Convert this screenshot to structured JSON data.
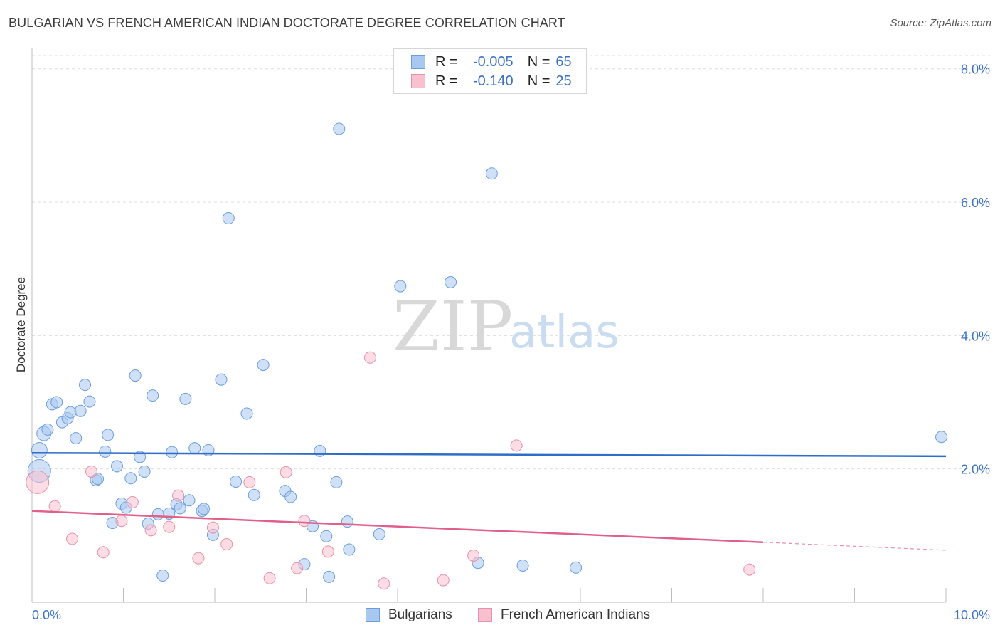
{
  "title": "BULGARIAN VS FRENCH AMERICAN INDIAN DOCTORATE DEGREE CORRELATION CHART",
  "source": "Source: ZipAtlas.com",
  "watermark": {
    "zip": "ZIP",
    "atlas": "atlas"
  },
  "legend_top": [
    {
      "r_label": "R =",
      "r_value": "-0.005",
      "n_label": "N =",
      "n_value": "65",
      "color": "#a9c8f0",
      "border": "#6a9ee0"
    },
    {
      "r_label": "R =",
      "r_value": "-0.140",
      "n_label": "N =",
      "n_value": "25",
      "color": "#f9c0d0",
      "border": "#e890ab"
    }
  ],
  "legend_bottom": [
    {
      "label": "Bulgarians",
      "color": "#a9c8f0",
      "border": "#6a9ee0"
    },
    {
      "label": "French American Indians",
      "color": "#f9c0d0",
      "border": "#e890ab"
    }
  ],
  "chart_data": {
    "type": "scatter",
    "title": "BULGARIAN VS FRENCH AMERICAN INDIAN DOCTORATE DEGREE CORRELATION CHART",
    "xlabel": "",
    "ylabel": "Doctorate Degree",
    "xlim": [
      0,
      10
    ],
    "ylim": [
      0,
      8.2
    ],
    "x_tick_labels": [
      {
        "value": 0,
        "label": "0.0%"
      },
      {
        "value": 10,
        "label": "10.0%"
      }
    ],
    "y_tick_labels": [
      {
        "value": 2,
        "label": "2.0%"
      },
      {
        "value": 4,
        "label": "4.0%"
      },
      {
        "value": 6,
        "label": "6.0%"
      },
      {
        "value": 8,
        "label": "8.0%"
      }
    ],
    "grid": true,
    "series": [
      {
        "name": "Bulgarians",
        "color": "#a9c8f0",
        "edge": "#6a9ee0",
        "trend": {
          "x": [
            0,
            10
          ],
          "y": [
            2.24,
            2.19
          ],
          "color": "#2f6ec8"
        },
        "points": [
          [
            0.08,
            2.28,
            11
          ],
          [
            0.08,
            1.97,
            16
          ],
          [
            0.13,
            2.53,
            10
          ],
          [
            0.17,
            2.59,
            8
          ],
          [
            0.22,
            2.97,
            8
          ],
          [
            0.27,
            3.0,
            8
          ],
          [
            0.33,
            2.7,
            8
          ],
          [
            0.39,
            2.76,
            8
          ],
          [
            0.42,
            2.85,
            8
          ],
          [
            0.48,
            2.46,
            8
          ],
          [
            0.53,
            2.87,
            8
          ],
          [
            0.58,
            3.26,
            8
          ],
          [
            0.63,
            3.01,
            8
          ],
          [
            0.7,
            1.83,
            8
          ],
          [
            0.72,
            1.85,
            8
          ],
          [
            0.8,
            2.26,
            8
          ],
          [
            0.83,
            2.51,
            8
          ],
          [
            0.88,
            1.19,
            8
          ],
          [
            0.93,
            2.04,
            8
          ],
          [
            0.98,
            1.48,
            8
          ],
          [
            1.03,
            1.42,
            8
          ],
          [
            1.08,
            1.86,
            8
          ],
          [
            1.13,
            3.4,
            8
          ],
          [
            1.18,
            2.18,
            8
          ],
          [
            1.23,
            1.96,
            8
          ],
          [
            1.27,
            1.18,
            8
          ],
          [
            1.32,
            3.1,
            8
          ],
          [
            1.38,
            1.32,
            8
          ],
          [
            1.43,
            0.4,
            8
          ],
          [
            1.5,
            1.33,
            8
          ],
          [
            1.53,
            2.25,
            8
          ],
          [
            1.58,
            1.47,
            8
          ],
          [
            1.62,
            1.41,
            8
          ],
          [
            1.68,
            3.05,
            8
          ],
          [
            1.72,
            1.53,
            8
          ],
          [
            1.78,
            2.31,
            8
          ],
          [
            1.86,
            1.37,
            8
          ],
          [
            1.88,
            1.4,
            8
          ],
          [
            1.93,
            2.28,
            8
          ],
          [
            1.98,
            1.01,
            8
          ],
          [
            2.07,
            3.34,
            8
          ],
          [
            2.15,
            5.76,
            8
          ],
          [
            2.23,
            1.81,
            8
          ],
          [
            2.35,
            2.83,
            8
          ],
          [
            2.43,
            1.61,
            8
          ],
          [
            2.53,
            3.56,
            8
          ],
          [
            2.77,
            1.67,
            8
          ],
          [
            2.83,
            1.58,
            8
          ],
          [
            2.98,
            0.57,
            8
          ],
          [
            3.07,
            1.14,
            8
          ],
          [
            3.15,
            2.27,
            8
          ],
          [
            3.22,
            0.99,
            8
          ],
          [
            3.25,
            0.38,
            8
          ],
          [
            3.33,
            1.8,
            8
          ],
          [
            3.36,
            7.1,
            8
          ],
          [
            3.45,
            1.21,
            8
          ],
          [
            3.47,
            0.79,
            8
          ],
          [
            3.8,
            1.02,
            8
          ],
          [
            4.03,
            4.74,
            8
          ],
          [
            4.58,
            4.8,
            8
          ],
          [
            4.88,
            0.59,
            8
          ],
          [
            5.03,
            6.43,
            8
          ],
          [
            5.37,
            0.55,
            8
          ],
          [
            5.95,
            0.52,
            8
          ],
          [
            9.95,
            2.48,
            8
          ]
        ]
      },
      {
        "name": "French American Indians",
        "color": "#f9c0d0",
        "edge": "#e890ab",
        "trend": {
          "x": [
            0,
            8
          ],
          "y": [
            1.37,
            0.9
          ],
          "x_dashed": [
            8,
            10
          ],
          "y_dashed": [
            0.9,
            0.78
          ],
          "color": "#e0608a"
        },
        "points": [
          [
            0.06,
            1.8,
            16
          ],
          [
            0.25,
            1.44,
            8
          ],
          [
            0.44,
            0.95,
            8
          ],
          [
            0.65,
            1.96,
            8
          ],
          [
            0.78,
            0.75,
            8
          ],
          [
            0.98,
            1.22,
            8
          ],
          [
            1.1,
            1.5,
            8
          ],
          [
            1.3,
            1.08,
            8
          ],
          [
            1.5,
            1.13,
            8
          ],
          [
            1.6,
            1.6,
            8
          ],
          [
            1.82,
            0.66,
            8
          ],
          [
            1.98,
            1.12,
            8
          ],
          [
            2.13,
            0.87,
            8
          ],
          [
            2.38,
            1.8,
            8
          ],
          [
            2.6,
            0.36,
            8
          ],
          [
            2.78,
            1.95,
            8
          ],
          [
            2.9,
            0.51,
            8
          ],
          [
            2.98,
            1.22,
            8
          ],
          [
            3.24,
            0.76,
            8
          ],
          [
            3.7,
            3.67,
            8
          ],
          [
            3.85,
            0.28,
            8
          ],
          [
            4.5,
            0.33,
            8
          ],
          [
            4.83,
            0.7,
            8
          ],
          [
            5.3,
            2.35,
            8
          ],
          [
            7.85,
            0.49,
            8
          ]
        ]
      }
    ]
  }
}
